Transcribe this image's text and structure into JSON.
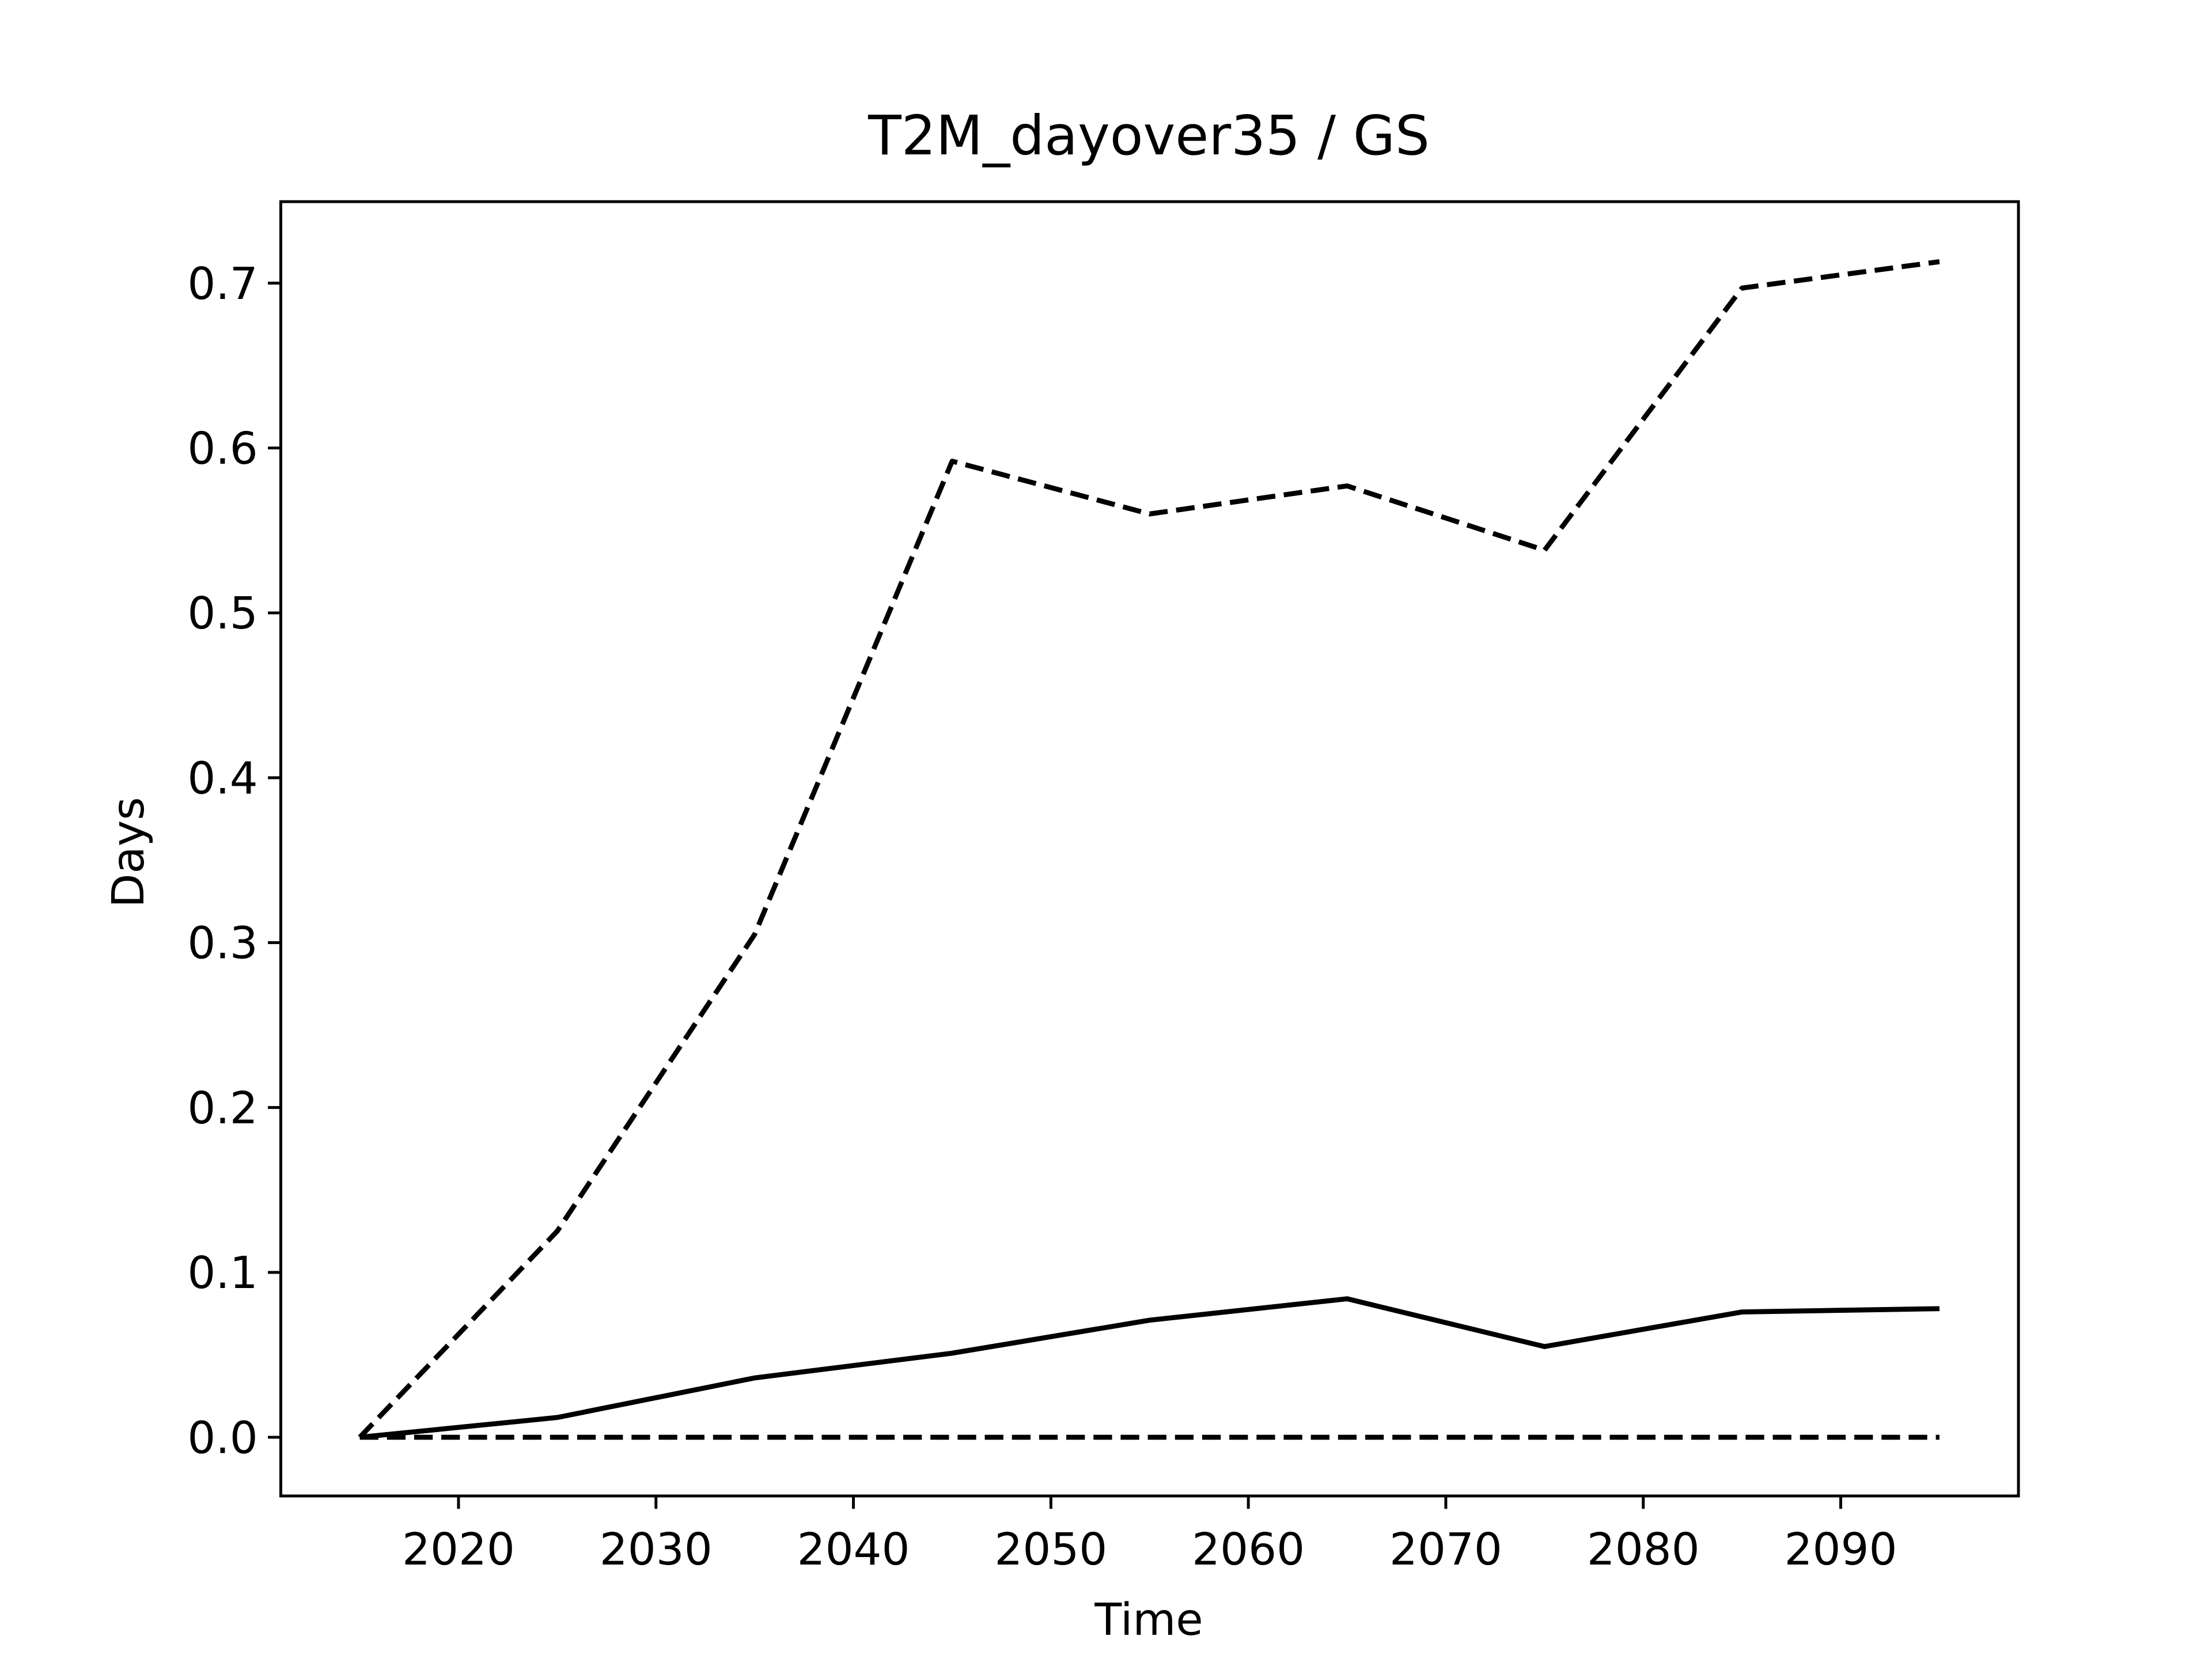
{
  "chart_data": {
    "type": "line",
    "title": "T2M_dayover35 / GS",
    "xlabel": "Time",
    "ylabel": "Days",
    "x": [
      2015,
      2025,
      2035,
      2045,
      2055,
      2065,
      2075,
      2085,
      2095
    ],
    "series": [
      {
        "color": "#000000",
        "linestyle": "dashed",
        "values": [
          0,
          0.125,
          0.305,
          0.592,
          0.56,
          0.577,
          0.538,
          0.697,
          0.713
        ]
      },
      {
        "color": "#000000",
        "linestyle": "solid",
        "values": [
          0,
          0.012,
          0.036,
          0.051,
          0.071,
          0.084,
          0.055,
          0.076,
          0.078
        ]
      },
      {
        "color": "#000000",
        "linestyle": "dashed",
        "values": [
          0,
          0,
          0,
          0,
          0,
          0,
          0,
          0,
          0
        ]
      }
    ],
    "xlim": [
      2011,
      2099
    ],
    "ylim": [
      -0.0356,
      0.7494
    ],
    "xticks": [
      2020,
      2030,
      2040,
      2050,
      2060,
      2070,
      2080,
      2090
    ],
    "yticks": [
      {
        "value": 0,
        "label": "0.0"
      },
      0.1,
      0.2,
      0.3,
      0.4,
      0.5,
      0.6,
      0.7
    ],
    "grid": false
  }
}
